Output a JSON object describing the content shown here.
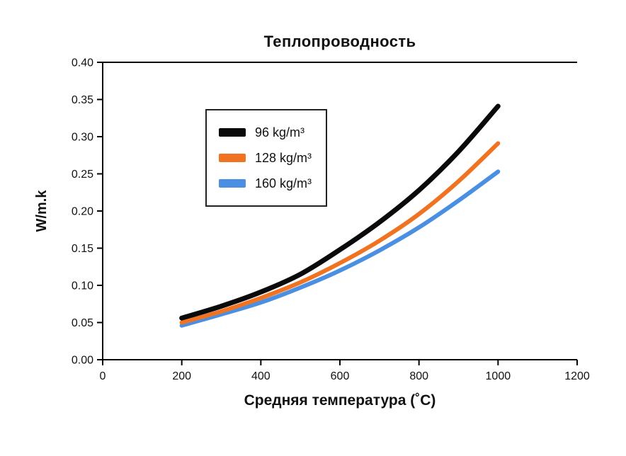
{
  "chart_data": {
    "type": "line",
    "title": "Теплопроводность",
    "xlabel": "Средняя температура (˚C)",
    "ylabel": "W/m.k",
    "xlim": [
      0,
      1200
    ],
    "ylim": [
      0.0,
      0.4
    ],
    "x_ticks": [
      0,
      200,
      400,
      600,
      800,
      1000,
      1200
    ],
    "x_tick_labels": [
      "0",
      "200",
      "400",
      "600",
      "800",
      "1000",
      "1200"
    ],
    "y_ticks": [
      0.0,
      0.05,
      0.1,
      0.15,
      0.2,
      0.25,
      0.3,
      0.35,
      0.4
    ],
    "y_tick_labels": [
      "0.00",
      "0.05",
      "0.10",
      "0.15",
      "0.20",
      "0.25",
      "0.30",
      "0.35",
      "0.40"
    ],
    "grid": false,
    "legend_position": "inside-upper-left",
    "x": [
      200,
      300,
      400,
      500,
      600,
      700,
      800,
      900,
      1000
    ],
    "series": [
      {
        "name": "96 kg/m³",
        "color": "#0a0a0a",
        "line_width": 7,
        "values": [
          0.056,
          0.072,
          0.091,
          0.115,
          0.148,
          0.185,
          0.228,
          0.28,
          0.341
        ]
      },
      {
        "name": "128 kg/m³",
        "color": "#f07322",
        "line_width": 6,
        "values": [
          0.05,
          0.065,
          0.083,
          0.104,
          0.13,
          0.16,
          0.196,
          0.24,
          0.291
        ]
      },
      {
        "name": "160 kg/m³",
        "color": "#4a8fe2",
        "line_width": 6,
        "values": [
          0.046,
          0.061,
          0.077,
          0.097,
          0.12,
          0.147,
          0.178,
          0.214,
          0.253
        ]
      }
    ],
    "axis_color": "#000000"
  }
}
